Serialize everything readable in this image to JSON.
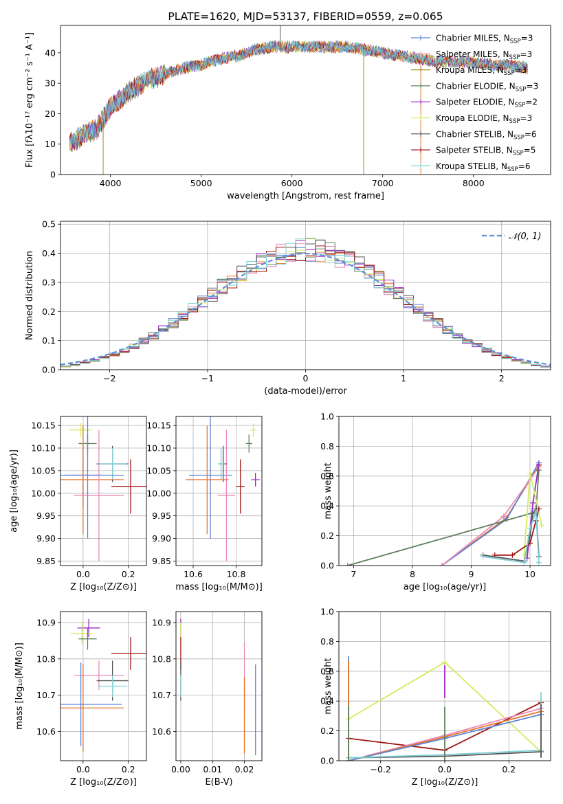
{
  "colors": {
    "chabrier_miles": "#5b84d4",
    "salpeter_miles": "#e88ab8",
    "kroupa_miles": "#a78a1e",
    "chabrier_elodie": "#5f7f5f",
    "salpeter_elodie": "#9a27c2",
    "kroupa_elodie": "#d4ea5c",
    "chabrier_stelib": "#555555",
    "salpeter_stelib": "#a01515",
    "kroupa_stelib": "#7fd0d6",
    "orange": "#e8742a",
    "gaussian": "#5b8fd9"
  },
  "chart_data": [
    {
      "id": "spectrum",
      "type": "line",
      "title": "PLATE=1620, MJD=53137, FIBERID=0559, z=0.065",
      "xlabel": "wavelength [Angstrom, rest frame]",
      "ylabel": "Flux [fλ10⁻¹⁷ erg cm⁻² s⁻¹ A⁻¹]",
      "xlim": [
        3450,
        8850
      ],
      "ylim": [
        0,
        49
      ],
      "xticks": [
        4000,
        5000,
        6000,
        7000,
        8000
      ],
      "yticks": [
        0,
        10,
        20,
        30,
        40
      ],
      "legend_position": "top-right",
      "legend": [
        {
          "label": "Chabrier MILES, N",
          "sub": "SSP",
          "tail": "=3",
          "color_key": "chabrier_miles"
        },
        {
          "label": "Salpeter MILES, N",
          "sub": "SSP",
          "tail": "=3",
          "color_key": "salpeter_miles"
        },
        {
          "label": "Kroupa MILES, N",
          "sub": "SSP",
          "tail": "=3",
          "color_key": "kroupa_miles"
        },
        {
          "label": "Chabrier ELODIE, N",
          "sub": "SSP",
          "tail": "=3",
          "color_key": "chabrier_elodie"
        },
        {
          "label": "Salpeter ELODIE, N",
          "sub": "SSP",
          "tail": "=2",
          "color_key": "salpeter_elodie"
        },
        {
          "label": "Kroupa ELODIE, N",
          "sub": "SSP",
          "tail": "=3",
          "color_key": "kroupa_elodie"
        },
        {
          "label": "Chabrier STELIB, N",
          "sub": "SSP",
          "tail": "=6",
          "color_key": "chabrier_stelib"
        },
        {
          "label": "Salpeter STELIB, N",
          "sub": "SSP",
          "tail": "=5",
          "color_key": "salpeter_stelib"
        },
        {
          "label": "Kroupa STELIB, N",
          "sub": "SSP",
          "tail": "=6",
          "color_key": "kroupa_stelib"
        }
      ],
      "continuum": {
        "wavelength": [
          3550,
          3700,
          3850,
          4000,
          4200,
          4400,
          4600,
          4800,
          5000,
          5200,
          5400,
          5600,
          5800,
          6000,
          6200,
          6400,
          6600,
          6800,
          7000,
          7200,
          7400,
          7600,
          7800,
          8000,
          8200,
          8400,
          8600,
          8800
        ],
        "flux": [
          10,
          13,
          15,
          22,
          27,
          31,
          33,
          35,
          36,
          38,
          39,
          41,
          42,
          42,
          42,
          42,
          42,
          41,
          40,
          39,
          38,
          37,
          37,
          37,
          36,
          36,
          35,
          35
        ]
      },
      "spikes": [
        {
          "wavelength": 3920,
          "flux": 0,
          "color_key": "kroupa_miles"
        },
        {
          "wavelength": 6790,
          "flux": 0,
          "color_key": "kroupa_miles"
        },
        {
          "wavelength": 7420,
          "flux": 0,
          "color_key": "orange"
        },
        {
          "wavelength": 5870,
          "flux": 49,
          "color_key": "chabrier_stelib"
        }
      ]
    },
    {
      "id": "residuals",
      "type": "step",
      "xlabel": "(data-model)/error",
      "ylabel": "Normed distribution",
      "xlim": [
        -2.5,
        2.5
      ],
      "ylim": [
        0,
        0.51
      ],
      "xticks": [
        -2,
        -1,
        0,
        1,
        2
      ],
      "yticks": [
        0.0,
        0.1,
        0.2,
        0.3,
        0.4,
        0.5
      ],
      "grid": true,
      "bin_width": 0.1,
      "legend": [
        {
          "label": "𝒩(0, 1)",
          "color_key": "gaussian",
          "style": "dashed"
        }
      ],
      "legend_position": "top-right"
    },
    {
      "id": "age_vs_z",
      "type": "errorbar",
      "xlabel": "Z [log₁₀(Z/Z⊙)]",
      "ylabel": "age  [log₁₀(age/yr)]",
      "xlim": [
        -0.1,
        0.28
      ],
      "ylim": [
        9.84,
        10.17
      ],
      "xticks": [
        0.0,
        0.2
      ],
      "xticklabels": [
        "0.0",
        "0.2"
      ],
      "yticks": [
        9.85,
        9.9,
        9.95,
        10.0,
        10.05,
        10.1,
        10.15
      ],
      "yticklabels": [
        "9.85",
        "9.90",
        "9.95",
        "10.00",
        "10.05",
        "10.10",
        "10.15"
      ],
      "grid": true,
      "points": [
        {
          "x": -0.01,
          "y": 10.14,
          "xerr": 0.05,
          "yerr": 0.015,
          "color_key": "kroupa_elodie"
        },
        {
          "x": 0.02,
          "y": 10.11,
          "xerr": 0.04,
          "yerr": 0.02,
          "color_key": "chabrier_elodie"
        },
        {
          "x": 0.13,
          "y": 10.065,
          "xerr": 0.07,
          "yerr": 0.04,
          "color_key": "chabrier_stelib"
        },
        {
          "x": 0.13,
          "y": 10.065,
          "xerr": 0.065,
          "yerr": 0.035,
          "color_key": "kroupa_stelib"
        },
        {
          "x": 0.0,
          "y": 10.04,
          "xerr": 0.08,
          "yerr": 0.07,
          "color_key": "salpeter_elodie"
        },
        {
          "x": 0.02,
          "y": 10.04,
          "xerr": 0.16,
          "yerr": 0.14,
          "color_key": "chabrier_miles"
        },
        {
          "x": 0.0,
          "y": 10.03,
          "xerr": 0.18,
          "yerr": 0.12,
          "color_key": "orange"
        },
        {
          "x": 0.21,
          "y": 10.015,
          "xerr": 0.085,
          "yerr": 0.06,
          "color_key": "salpeter_stelib"
        },
        {
          "x": 0.07,
          "y": 9.995,
          "xerr": 0.11,
          "yerr": 0.145,
          "color_key": "salpeter_miles"
        }
      ]
    },
    {
      "id": "age_vs_mass",
      "type": "errorbar",
      "xlabel": "mass [log₁₀(M/M⊙)]",
      "ylabel": "",
      "xlim": [
        10.52,
        10.92
      ],
      "ylim": [
        9.84,
        10.17
      ],
      "xticks": [
        10.6,
        10.8
      ],
      "xticklabels": [
        "10.6",
        "10.8"
      ],
      "yticks": [
        9.85,
        9.9,
        9.95,
        10.0,
        10.05,
        10.1,
        10.15
      ],
      "yticklabels": [
        "9.85",
        "9.90",
        "9.95",
        "10.00",
        "10.05",
        "10.10",
        "10.15"
      ],
      "grid": true,
      "points": [
        {
          "x": 10.88,
          "y": 10.14,
          "xerr": 0.015,
          "yerr": 0.015,
          "color_key": "kroupa_elodie"
        },
        {
          "x": 10.86,
          "y": 10.11,
          "xerr": 0.015,
          "yerr": 0.02,
          "color_key": "chabrier_elodie"
        },
        {
          "x": 10.74,
          "y": 10.065,
          "xerr": 0.02,
          "yerr": 0.04,
          "color_key": "chabrier_stelib"
        },
        {
          "x": 10.73,
          "y": 10.065,
          "xerr": 0.015,
          "yerr": 0.035,
          "color_key": "kroupa_stelib"
        },
        {
          "x": 10.89,
          "y": 10.03,
          "xerr": 0.02,
          "yerr": 0.015,
          "color_key": "salpeter_elodie"
        },
        {
          "x": 10.68,
          "y": 10.04,
          "xerr": 0.1,
          "yerr": 0.14,
          "color_key": "chabrier_miles"
        },
        {
          "x": 10.665,
          "y": 10.03,
          "xerr": 0.1,
          "yerr": 0.12,
          "color_key": "orange"
        },
        {
          "x": 10.82,
          "y": 10.015,
          "xerr": 0.02,
          "yerr": 0.06,
          "color_key": "salpeter_stelib"
        },
        {
          "x": 10.755,
          "y": 9.995,
          "xerr": 0.04,
          "yerr": 0.145,
          "color_key": "salpeter_miles"
        }
      ]
    },
    {
      "id": "massweight_vs_age",
      "type": "line",
      "xlabel": "age  [log₁₀(age/yr)]",
      "ylabel": "mass weight",
      "xlim": [
        6.75,
        10.35
      ],
      "ylim": [
        0,
        1.0
      ],
      "xticks": [
        7,
        8,
        9,
        10
      ],
      "yticks": [
        0.0,
        0.2,
        0.4,
        0.6,
        0.8,
        1.0
      ],
      "grid": true,
      "series": [
        {
          "color_key": "orange",
          "x": [
            8.5,
            9.6,
            10.15
          ],
          "y": [
            0.0,
            0.32,
            0.67
          ]
        },
        {
          "color_key": "chabrier_miles",
          "x": [
            8.5,
            9.6,
            10.15
          ],
          "y": [
            0.0,
            0.31,
            0.69
          ]
        },
        {
          "color_key": "salpeter_miles",
          "x": [
            8.5,
            9.55,
            10.15
          ],
          "y": [
            0.0,
            0.33,
            0.66
          ]
        },
        {
          "color_key": "chabrier_elodie",
          "x": [
            6.9,
            10.1,
            10.15
          ],
          "y": [
            0.0,
            0.36,
            0.64
          ]
        },
        {
          "color_key": "salpeter_elodie",
          "x": [
            9.95,
            10.05,
            10.15
          ],
          "y": [
            0.05,
            0.42,
            0.68
          ]
        },
        {
          "color_key": "kroupa_elodie",
          "x": [
            9.9,
            10.0,
            10.2
          ],
          "y": [
            0.07,
            0.62,
            0.27
          ]
        },
        {
          "color_key": "salpeter_stelib",
          "x": [
            9.4,
            9.7,
            10.0,
            10.1,
            10.15
          ],
          "y": [
            0.07,
            0.07,
            0.15,
            0.3,
            0.38
          ]
        },
        {
          "color_key": "chabrier_stelib",
          "x": [
            9.2,
            9.9,
            10.0,
            10.05,
            10.1,
            10.15
          ],
          "y": [
            0.07,
            0.03,
            0.2,
            0.35,
            0.38,
            0.06
          ]
        },
        {
          "color_key": "kroupa_stelib",
          "x": [
            9.2,
            9.9,
            10.0,
            10.1,
            10.15
          ],
          "y": [
            0.06,
            0.02,
            0.25,
            0.36,
            0.02
          ]
        }
      ]
    },
    {
      "id": "mass_vs_z",
      "type": "errorbar",
      "xlabel": "Z [log₁₀(Z/Z⊙)]",
      "ylabel": "mass [log₁₀(M/M⊙)]",
      "xlim": [
        -0.1,
        0.28
      ],
      "ylim": [
        10.52,
        10.93
      ],
      "xticks": [
        0.0,
        0.2
      ],
      "xticklabels": [
        "0.0",
        "0.2"
      ],
      "yticks": [
        10.6,
        10.7,
        10.8,
        10.9
      ],
      "yticklabels": [
        "10.6",
        "10.7",
        "10.8",
        "10.9"
      ],
      "grid": true,
      "points": [
        {
          "x": 0.025,
          "y": 10.885,
          "xerr": 0.05,
          "yerr": 0.025,
          "color_key": "salpeter_elodie"
        },
        {
          "x": -0.005,
          "y": 10.87,
          "xerr": 0.05,
          "yerr": 0.03,
          "color_key": "kroupa_elodie"
        },
        {
          "x": 0.02,
          "y": 10.855,
          "xerr": 0.04,
          "yerr": 0.03,
          "color_key": "chabrier_elodie"
        },
        {
          "x": 0.21,
          "y": 10.815,
          "xerr": 0.085,
          "yerr": 0.045,
          "color_key": "salpeter_stelib"
        },
        {
          "x": 0.07,
          "y": 10.755,
          "xerr": 0.11,
          "yerr": 0.04,
          "color_key": "salpeter_miles"
        },
        {
          "x": 0.13,
          "y": 10.74,
          "xerr": 0.07,
          "yerr": 0.055,
          "color_key": "chabrier_stelib"
        },
        {
          "x": 0.13,
          "y": 10.725,
          "xerr": 0.065,
          "yerr": 0.03,
          "color_key": "kroupa_stelib"
        },
        {
          "x": -0.01,
          "y": 10.675,
          "xerr": 0.18,
          "yerr": 0.115,
          "color_key": "chabrier_miles"
        },
        {
          "x": 0.0,
          "y": 10.665,
          "xerr": 0.18,
          "yerr": 0.12,
          "color_key": "orange"
        }
      ]
    },
    {
      "id": "mass_vs_ebv",
      "type": "errorbar",
      "xlabel": "E(B-V)",
      "ylabel": "",
      "xlim": [
        -0.0015,
        0.0255
      ],
      "ylim": [
        10.52,
        10.93
      ],
      "xticks": [
        0.0,
        0.01,
        0.02
      ],
      "xticklabels": [
        "0.00",
        "0.01",
        "0.02"
      ],
      "yticks": [
        10.6,
        10.7,
        10.8,
        10.9
      ],
      "yticklabels": [
        "10.6",
        "10.7",
        "10.8",
        "10.9"
      ],
      "grid": true,
      "points": [
        {
          "x": 0.0,
          "y": 10.885,
          "xerr": 0,
          "yerr": 0.025,
          "color_key": "salpeter_elodie"
        },
        {
          "x": 0.0,
          "y": 10.87,
          "xerr": 0,
          "yerr": 0.03,
          "color_key": "kroupa_elodie"
        },
        {
          "x": 0.0,
          "y": 10.815,
          "xerr": 0,
          "yerr": 0.045,
          "color_key": "salpeter_stelib"
        },
        {
          "x": 0.0,
          "y": 10.74,
          "xerr": 0,
          "yerr": 0.055,
          "color_key": "chabrier_stelib"
        },
        {
          "x": 0.0,
          "y": 10.725,
          "xerr": 0,
          "yerr": 0.03,
          "color_key": "kroupa_stelib"
        },
        {
          "x": 0.02,
          "y": 10.755,
          "xerr": 0,
          "yerr": 0.09,
          "color_key": "salpeter_miles"
        },
        {
          "x": 0.02,
          "y": 10.645,
          "xerr": 0,
          "yerr": 0.105,
          "color_key": "orange"
        },
        {
          "x": 0.0235,
          "y": 10.66,
          "xerr": 0,
          "yerr": 0.125,
          "color_key": "chabrier_miles"
        }
      ]
    },
    {
      "id": "massweight_vs_z",
      "type": "line",
      "xlabel": "Z [log₁₀(Z/Z⊙)]",
      "ylabel": "mass weight",
      "xlim": [
        -0.33,
        0.33
      ],
      "ylim": [
        0,
        1.0
      ],
      "xticks": [
        -0.2,
        0.0,
        0.2
      ],
      "xticklabels": [
        "−0.2",
        "0.0",
        "0.2"
      ],
      "yticks": [
        0.0,
        0.2,
        0.4,
        0.6,
        0.8,
        1.0
      ],
      "grid": true,
      "series": [
        {
          "color_key": "kroupa_elodie",
          "x": [
            -0.3,
            0.0,
            0.3
          ],
          "y": [
            0.28,
            0.66,
            0.06
          ]
        },
        {
          "color_key": "salpeter_stelib",
          "x": [
            -0.3,
            0.0,
            0.3
          ],
          "y": [
            0.15,
            0.07,
            0.39
          ]
        },
        {
          "color_key": "salpeter_miles",
          "x": [
            -0.3,
            0.0,
            0.3
          ],
          "y": [
            0.0,
            0.17,
            0.35
          ]
        },
        {
          "color_key": "orange",
          "x": [
            -0.3,
            0.0,
            0.3
          ],
          "y": [
            0.0,
            0.16,
            0.33
          ]
        },
        {
          "color_key": "chabrier_miles",
          "x": [
            -0.3,
            0.0,
            0.3
          ],
          "y": [
            0.0,
            0.15,
            0.31
          ]
        },
        {
          "color_key": "chabrier_stelib",
          "x": [
            -0.3,
            0.0,
            0.3
          ],
          "y": [
            0.02,
            0.03,
            0.06
          ]
        },
        {
          "color_key": "kroupa_stelib",
          "x": [
            -0.3,
            0.0,
            0.3
          ],
          "y": [
            0.02,
            0.04,
            0.07
          ]
        }
      ],
      "vertical_marks": [
        {
          "color_key": "chabrier_miles",
          "x": -0.3,
          "y": [
            0.0,
            0.7
          ]
        },
        {
          "color_key": "orange",
          "x": -0.3,
          "y": [
            0.0,
            0.67
          ]
        },
        {
          "color_key": "chabrier_elodie",
          "x": -0.3,
          "y": [
            0.0,
            0.37
          ]
        },
        {
          "color_key": "salpeter_elodie",
          "x": 0.0,
          "y": [
            0.42,
            0.64
          ]
        },
        {
          "color_key": "chabrier_elodie",
          "x": 0.0,
          "y": [
            0.0,
            0.36
          ]
        },
        {
          "color_key": "kroupa_stelib",
          "x": 0.3,
          "y": [
            0.02,
            0.46
          ]
        },
        {
          "color_key": "chabrier_stelib",
          "x": 0.3,
          "y": [
            0.02,
            0.38
          ]
        }
      ]
    }
  ]
}
